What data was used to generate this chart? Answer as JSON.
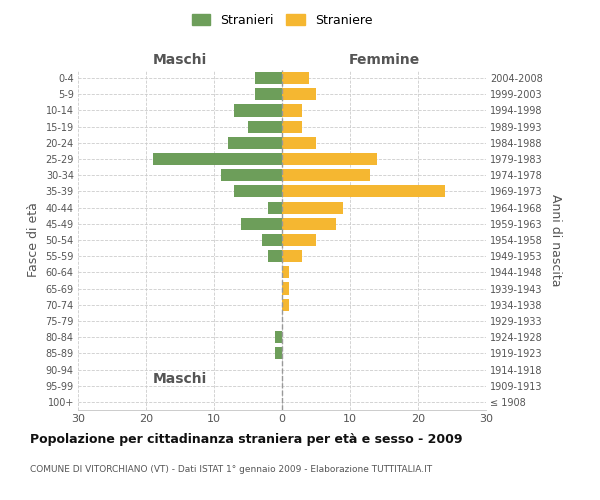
{
  "age_groups": [
    "100+",
    "95-99",
    "90-94",
    "85-89",
    "80-84",
    "75-79",
    "70-74",
    "65-69",
    "60-64",
    "55-59",
    "50-54",
    "45-49",
    "40-44",
    "35-39",
    "30-34",
    "25-29",
    "20-24",
    "15-19",
    "10-14",
    "5-9",
    "0-4"
  ],
  "birth_years": [
    "≤ 1908",
    "1909-1913",
    "1914-1918",
    "1919-1923",
    "1924-1928",
    "1929-1933",
    "1934-1938",
    "1939-1943",
    "1944-1948",
    "1949-1953",
    "1954-1958",
    "1959-1963",
    "1964-1968",
    "1969-1973",
    "1974-1978",
    "1979-1983",
    "1984-1988",
    "1989-1993",
    "1994-1998",
    "1999-2003",
    "2004-2008"
  ],
  "maschi": [
    0,
    0,
    0,
    1,
    1,
    0,
    0,
    0,
    0,
    2,
    3,
    6,
    2,
    7,
    9,
    19,
    8,
    5,
    7,
    4,
    4
  ],
  "femmine": [
    0,
    0,
    0,
    0,
    0,
    0,
    1,
    1,
    1,
    3,
    5,
    8,
    9,
    24,
    13,
    14,
    5,
    3,
    3,
    5,
    4
  ],
  "maschi_color": "#6d9e5a",
  "femmine_color": "#f5b731",
  "background_color": "#ffffff",
  "grid_color": "#cccccc",
  "title": "Popolazione per cittadinanza straniera per età e sesso - 2009",
  "subtitle": "COMUNE DI VITORCHIANO (VT) - Dati ISTAT 1° gennaio 2009 - Elaborazione TUTTITALIA.IT",
  "ylabel_left": "Fasce di età",
  "ylabel_right": "Anni di nascita",
  "xlabel_maschi": "Maschi",
  "xlabel_femmine": "Femmine",
  "legend_maschi": "Stranieri",
  "legend_femmine": "Straniere",
  "xlim": [
    -30,
    30
  ],
  "xticks": [
    -30,
    -20,
    -10,
    0,
    10,
    20,
    30
  ],
  "xticklabels": [
    "30",
    "20",
    "10",
    "0",
    "10",
    "20",
    "30"
  ]
}
